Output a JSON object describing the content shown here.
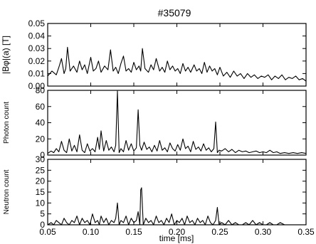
{
  "chart_data": {
    "title": "#35079",
    "xlabel": "time  [ms]",
    "xlim": [
      0.05,
      0.35
    ],
    "xticks": [
      "0.05",
      "0.10",
      "0.15",
      "0.20",
      "0.25",
      "0.30",
      "0.35"
    ],
    "panels": [
      {
        "type": "line",
        "ylabel": "|Bφ|(a)  [T]",
        "ylim": [
          0,
          0.05
        ],
        "yticks": [
          "0.00",
          "0.01",
          "0.02",
          "0.03",
          "0.04",
          "0.05"
        ],
        "x": [
          0.05,
          0.055,
          0.06,
          0.063,
          0.066,
          0.069,
          0.071,
          0.073,
          0.076,
          0.08,
          0.084,
          0.087,
          0.09,
          0.093,
          0.096,
          0.1,
          0.103,
          0.106,
          0.109,
          0.112,
          0.116,
          0.12,
          0.123,
          0.126,
          0.129,
          0.132,
          0.135,
          0.138,
          0.141,
          0.144,
          0.147,
          0.15,
          0.153,
          0.156,
          0.158,
          0.16,
          0.163,
          0.167,
          0.17,
          0.173,
          0.176,
          0.18,
          0.183,
          0.186,
          0.189,
          0.192,
          0.195,
          0.198,
          0.201,
          0.204,
          0.207,
          0.21,
          0.213,
          0.216,
          0.22,
          0.223,
          0.226,
          0.229,
          0.232,
          0.235,
          0.238,
          0.241,
          0.244,
          0.247,
          0.25,
          0.254,
          0.258,
          0.262,
          0.266,
          0.27,
          0.274,
          0.278,
          0.282,
          0.286,
          0.29,
          0.294,
          0.298,
          0.302,
          0.306,
          0.31,
          0.314,
          0.318,
          0.322,
          0.326,
          0.33,
          0.334,
          0.338,
          0.342,
          0.346,
          0.35
        ],
        "y": [
          0.008,
          0.012,
          0.009,
          0.015,
          0.022,
          0.01,
          0.014,
          0.031,
          0.012,
          0.016,
          0.011,
          0.02,
          0.013,
          0.017,
          0.01,
          0.023,
          0.012,
          0.014,
          0.02,
          0.011,
          0.016,
          0.013,
          0.029,
          0.012,
          0.015,
          0.01,
          0.018,
          0.024,
          0.012,
          0.014,
          0.011,
          0.019,
          0.013,
          0.016,
          0.012,
          0.03,
          0.014,
          0.011,
          0.017,
          0.013,
          0.022,
          0.012,
          0.015,
          0.011,
          0.02,
          0.013,
          0.016,
          0.012,
          0.014,
          0.01,
          0.018,
          0.012,
          0.015,
          0.011,
          0.017,
          0.012,
          0.014,
          0.01,
          0.019,
          0.011,
          0.016,
          0.012,
          0.014,
          0.009,
          0.015,
          0.008,
          0.011,
          0.007,
          0.012,
          0.008,
          0.01,
          0.006,
          0.01,
          0.007,
          0.009,
          0.006,
          0.008,
          0.007,
          0.009,
          0.005,
          0.008,
          0.006,
          0.009,
          0.005,
          0.007,
          0.006,
          0.008,
          0.005,
          0.006,
          0.004
        ]
      },
      {
        "type": "line",
        "ylabel": "Photon count",
        "ylim": [
          0,
          80
        ],
        "yticks": [
          "0",
          "20",
          "40",
          "60",
          "80"
        ],
        "x": [
          0.05,
          0.054,
          0.057,
          0.06,
          0.063,
          0.066,
          0.069,
          0.072,
          0.075,
          0.078,
          0.081,
          0.084,
          0.087,
          0.09,
          0.093,
          0.096,
          0.099,
          0.102,
          0.105,
          0.108,
          0.11,
          0.112,
          0.115,
          0.118,
          0.121,
          0.124,
          0.127,
          0.129,
          0.131,
          0.133,
          0.135,
          0.138,
          0.141,
          0.144,
          0.147,
          0.15,
          0.153,
          0.155,
          0.157,
          0.159,
          0.162,
          0.165,
          0.168,
          0.171,
          0.174,
          0.177,
          0.18,
          0.183,
          0.186,
          0.189,
          0.192,
          0.195,
          0.198,
          0.201,
          0.204,
          0.207,
          0.21,
          0.213,
          0.216,
          0.219,
          0.222,
          0.225,
          0.228,
          0.231,
          0.234,
          0.237,
          0.24,
          0.243,
          0.245,
          0.247,
          0.249,
          0.252,
          0.256,
          0.26,
          0.264,
          0.268,
          0.272,
          0.276,
          0.28,
          0.284,
          0.288,
          0.292,
          0.296,
          0.3,
          0.304,
          0.308,
          0.312,
          0.316,
          0.32,
          0.325,
          0.33,
          0.335,
          0.34,
          0.345,
          0.35
        ],
        "y": [
          2,
          5,
          3,
          8,
          4,
          17,
          6,
          3,
          20,
          5,
          12,
          4,
          25,
          6,
          3,
          14,
          5,
          8,
          4,
          22,
          7,
          30,
          5,
          18,
          6,
          10,
          4,
          12,
          79,
          3,
          8,
          4,
          18,
          6,
          14,
          5,
          9,
          56,
          12,
          6,
          16,
          7,
          10,
          4,
          12,
          5,
          18,
          6,
          9,
          4,
          15,
          8,
          5,
          13,
          6,
          20,
          8,
          11,
          4,
          17,
          7,
          10,
          5,
          14,
          6,
          9,
          4,
          8,
          41,
          3,
          6,
          5,
          8,
          4,
          7,
          3,
          6,
          4,
          5,
          3,
          4,
          5,
          3,
          4,
          3,
          6,
          3,
          4,
          2,
          3,
          2,
          3,
          2,
          3,
          2
        ]
      },
      {
        "type": "line",
        "ylabel": "Neutron count",
        "ylim": [
          0,
          30
        ],
        "yticks": [
          "0",
          "5",
          "10",
          "15",
          "20",
          "25",
          "30"
        ],
        "x": [
          0.05,
          0.054,
          0.057,
          0.06,
          0.063,
          0.066,
          0.069,
          0.072,
          0.075,
          0.078,
          0.081,
          0.084,
          0.087,
          0.09,
          0.093,
          0.096,
          0.099,
          0.102,
          0.105,
          0.108,
          0.11,
          0.112,
          0.115,
          0.118,
          0.121,
          0.124,
          0.127,
          0.129,
          0.131,
          0.133,
          0.135,
          0.138,
          0.141,
          0.144,
          0.147,
          0.15,
          0.153,
          0.155,
          0.157,
          0.158,
          0.159,
          0.161,
          0.164,
          0.167,
          0.17,
          0.173,
          0.176,
          0.179,
          0.182,
          0.185,
          0.188,
          0.191,
          0.194,
          0.197,
          0.2,
          0.203,
          0.206,
          0.209,
          0.212,
          0.215,
          0.218,
          0.221,
          0.224,
          0.227,
          0.23,
          0.233,
          0.236,
          0.239,
          0.242,
          0.245,
          0.247,
          0.249,
          0.252,
          0.256,
          0.26,
          0.264,
          0.268,
          0.272,
          0.276,
          0.28,
          0.284,
          0.288,
          0.292,
          0.296,
          0.3,
          0.304,
          0.308,
          0.312,
          0.316,
          0.32,
          0.325,
          0.33,
          0.335,
          0.34,
          0.345,
          0.35
        ],
        "y": [
          0,
          1,
          0,
          2,
          1,
          0,
          3,
          1,
          0,
          2,
          1,
          4,
          0,
          3,
          1,
          2,
          0,
          5,
          1,
          2,
          0,
          4,
          1,
          3,
          0,
          2,
          1,
          3,
          10,
          0,
          2,
          1,
          4,
          0,
          3,
          1,
          2,
          6,
          0,
          16,
          17,
          0,
          3,
          1,
          2,
          0,
          4,
          1,
          2,
          0,
          3,
          1,
          5,
          0,
          2,
          1,
          3,
          0,
          4,
          1,
          2,
          0,
          3,
          1,
          2,
          0,
          4,
          1,
          0,
          2,
          8,
          0,
          1,
          0,
          2,
          0,
          1,
          0,
          0,
          1,
          0,
          2,
          0,
          1,
          0,
          0,
          1,
          0,
          0,
          1,
          0,
          0,
          0,
          0,
          0,
          0
        ]
      }
    ]
  }
}
